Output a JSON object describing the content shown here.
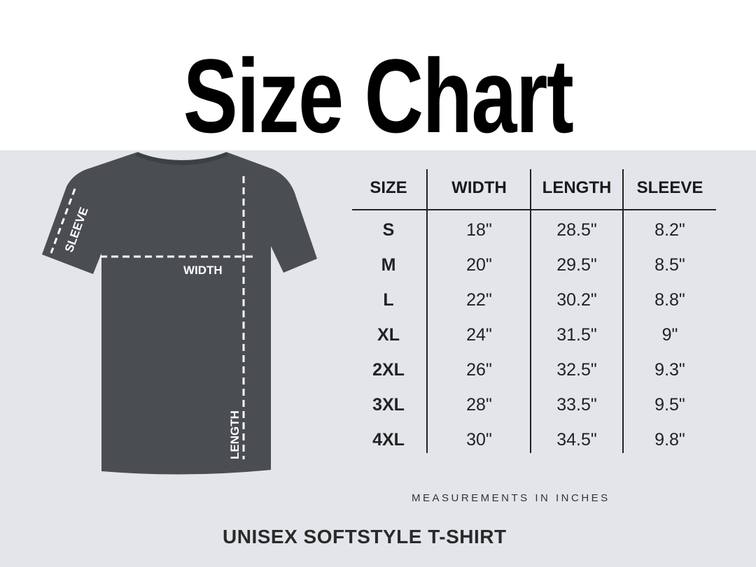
{
  "title": "Size Chart",
  "diagram_labels": {
    "sleeve": "SLEEVE",
    "width": "WIDTH",
    "length": "LENGTH"
  },
  "table": {
    "headers": [
      "SIZE",
      "WIDTH",
      "LENGTH",
      "SLEEVE"
    ],
    "rows": [
      [
        "S",
        "18\"",
        "28.5\"",
        "8.2\""
      ],
      [
        "M",
        "20\"",
        "29.5\"",
        "8.5\""
      ],
      [
        "L",
        "22\"",
        "30.2\"",
        "8.8\""
      ],
      [
        "XL",
        "24\"",
        "31.5\"",
        "9\""
      ],
      [
        "2XL",
        "26\"",
        "32.5\"",
        "9.3\""
      ],
      [
        "3XL",
        "28\"",
        "33.5\"",
        "9.5\""
      ],
      [
        "4XL",
        "30\"",
        "34.5\"",
        "9.8\""
      ]
    ]
  },
  "note": "MEASUREMENTS IN INCHES",
  "product": "UNISEX SOFTSTYLE T-SHIRT",
  "colors": {
    "background": "#e3e5ea",
    "shirt": "#4a4d52",
    "text": "#222222"
  }
}
